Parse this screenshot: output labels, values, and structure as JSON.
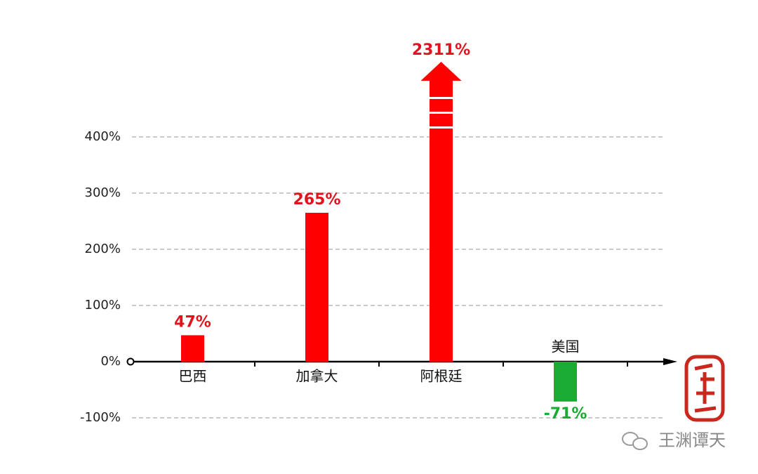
{
  "chart_data": {
    "type": "bar",
    "categories": [
      "巴西",
      "加拿大",
      "阿根廷",
      "美国"
    ],
    "values": [
      47,
      265,
      2311,
      -71
    ],
    "value_labels": [
      "47%",
      "265%",
      "2311%",
      "-71%"
    ],
    "colors": [
      "#ff0000",
      "#ff0000",
      "#ff0000",
      "#19ab33"
    ],
    "label_colors": [
      "#e0141e",
      "#e0141e",
      "#e0141e",
      "#19ab33"
    ],
    "ylim": [
      -120,
      560
    ],
    "yticks": [
      {
        "value": -100,
        "label": "-100%"
      },
      {
        "value": 0,
        "label": "0%"
      },
      {
        "value": 100,
        "label": "100%"
      },
      {
        "value": 200,
        "label": "200%"
      },
      {
        "value": 300,
        "label": "300%"
      },
      {
        "value": 400,
        "label": "400%"
      }
    ],
    "grid": true
  },
  "watermark": "王渊谭天"
}
